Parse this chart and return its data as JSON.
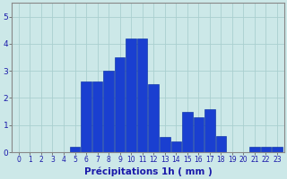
{
  "bar_values": [
    0,
    0,
    0,
    0,
    0,
    0.2,
    2.6,
    2.6,
    3.0,
    3.5,
    4.2,
    4.2,
    2.5,
    0.55,
    0.4,
    1.5,
    1.3,
    1.6,
    0.6,
    0,
    0,
    0.2,
    0.2,
    0.2
  ],
  "bar_color": "#1a3fd0",
  "bar_edge_color": "#0028a0",
  "background_color": "#cce8e8",
  "grid_color": "#aacfcf",
  "xlabel": "Précipitations 1h ( mm )",
  "xlabel_fontsize": 7.5,
  "ylim": [
    0,
    5.5
  ],
  "xlim": [
    -0.6,
    23.6
  ],
  "yticks": [
    0,
    1,
    2,
    3,
    4,
    5
  ],
  "xticks": [
    0,
    1,
    2,
    3,
    4,
    5,
    6,
    7,
    8,
    9,
    10,
    11,
    12,
    13,
    14,
    15,
    16,
    17,
    18,
    19,
    20,
    21,
    22,
    23
  ],
  "tick_fontsize": 5.5,
  "tick_color": "#1a1aaa",
  "label_color": "#1a1aaa"
}
